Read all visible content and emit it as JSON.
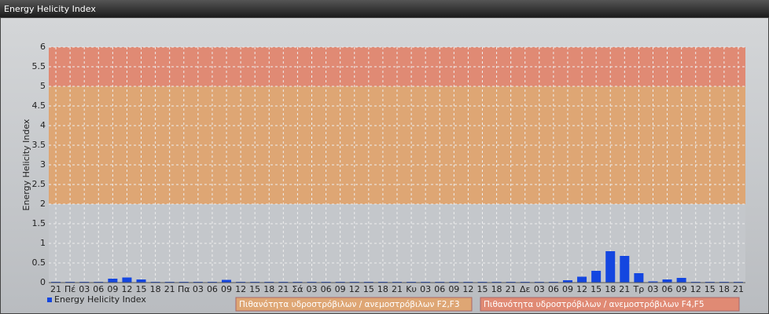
{
  "chart_data": {
    "type": "bar",
    "title": "Energy Helicity Index",
    "y_label": "Energy Helicity Index",
    "categories": [
      "21",
      "Πέ",
      "03",
      "06",
      "09",
      "12",
      "15",
      "18",
      "21",
      "Πα",
      "03",
      "06",
      "09",
      "12",
      "15",
      "18",
      "21",
      "Σά",
      "03",
      "06",
      "09",
      "12",
      "15",
      "18",
      "21",
      "Κυ",
      "03",
      "06",
      "09",
      "12",
      "15",
      "18",
      "21",
      "Δε",
      "03",
      "06",
      "09",
      "12",
      "15",
      "18",
      "21",
      "Τρ",
      "03",
      "06",
      "09",
      "12",
      "15",
      "18",
      "21"
    ],
    "series": [
      {
        "name": "Energy Helicity Index",
        "color": "#1446e0",
        "values": [
          0.02,
          0.02,
          0.02,
          0.02,
          0.1,
          0.13,
          0.08,
          0.02,
          0.02,
          0.02,
          0.02,
          0.02,
          0.07,
          0.02,
          0.02,
          0.02,
          0.02,
          0.02,
          0.02,
          0.02,
          0.02,
          0.02,
          0.02,
          0.02,
          0.02,
          0.02,
          0.02,
          0.02,
          0.02,
          0.02,
          0.02,
          0.02,
          0.02,
          0.02,
          0.02,
          0.02,
          0.06,
          0.15,
          0.3,
          0.8,
          0.68,
          0.24,
          0.03,
          0.08,
          0.12,
          0.02,
          0.02,
          0.02,
          0.02
        ]
      }
    ],
    "bands": [
      {
        "from": 0,
        "to": 2,
        "color": "#c4c7cb"
      },
      {
        "from": 2,
        "to": 5,
        "color": "#dea674",
        "label": "Πιθανότητα υδροστρόβιλων / ανεμοστρόβιλων F2,F3"
      },
      {
        "from": 5,
        "to": 6,
        "color": "#e08a74",
        "label": "Πιθανότητα υδροστρόβιλων / ανεμοστρόβιλων F4,F5"
      }
    ],
    "ylim": [
      0,
      6
    ],
    "yticks": [
      0,
      0.5,
      1,
      1.5,
      2,
      2.5,
      3,
      3.5,
      4,
      4.5,
      5,
      5.5,
      6
    ],
    "grid": true
  }
}
